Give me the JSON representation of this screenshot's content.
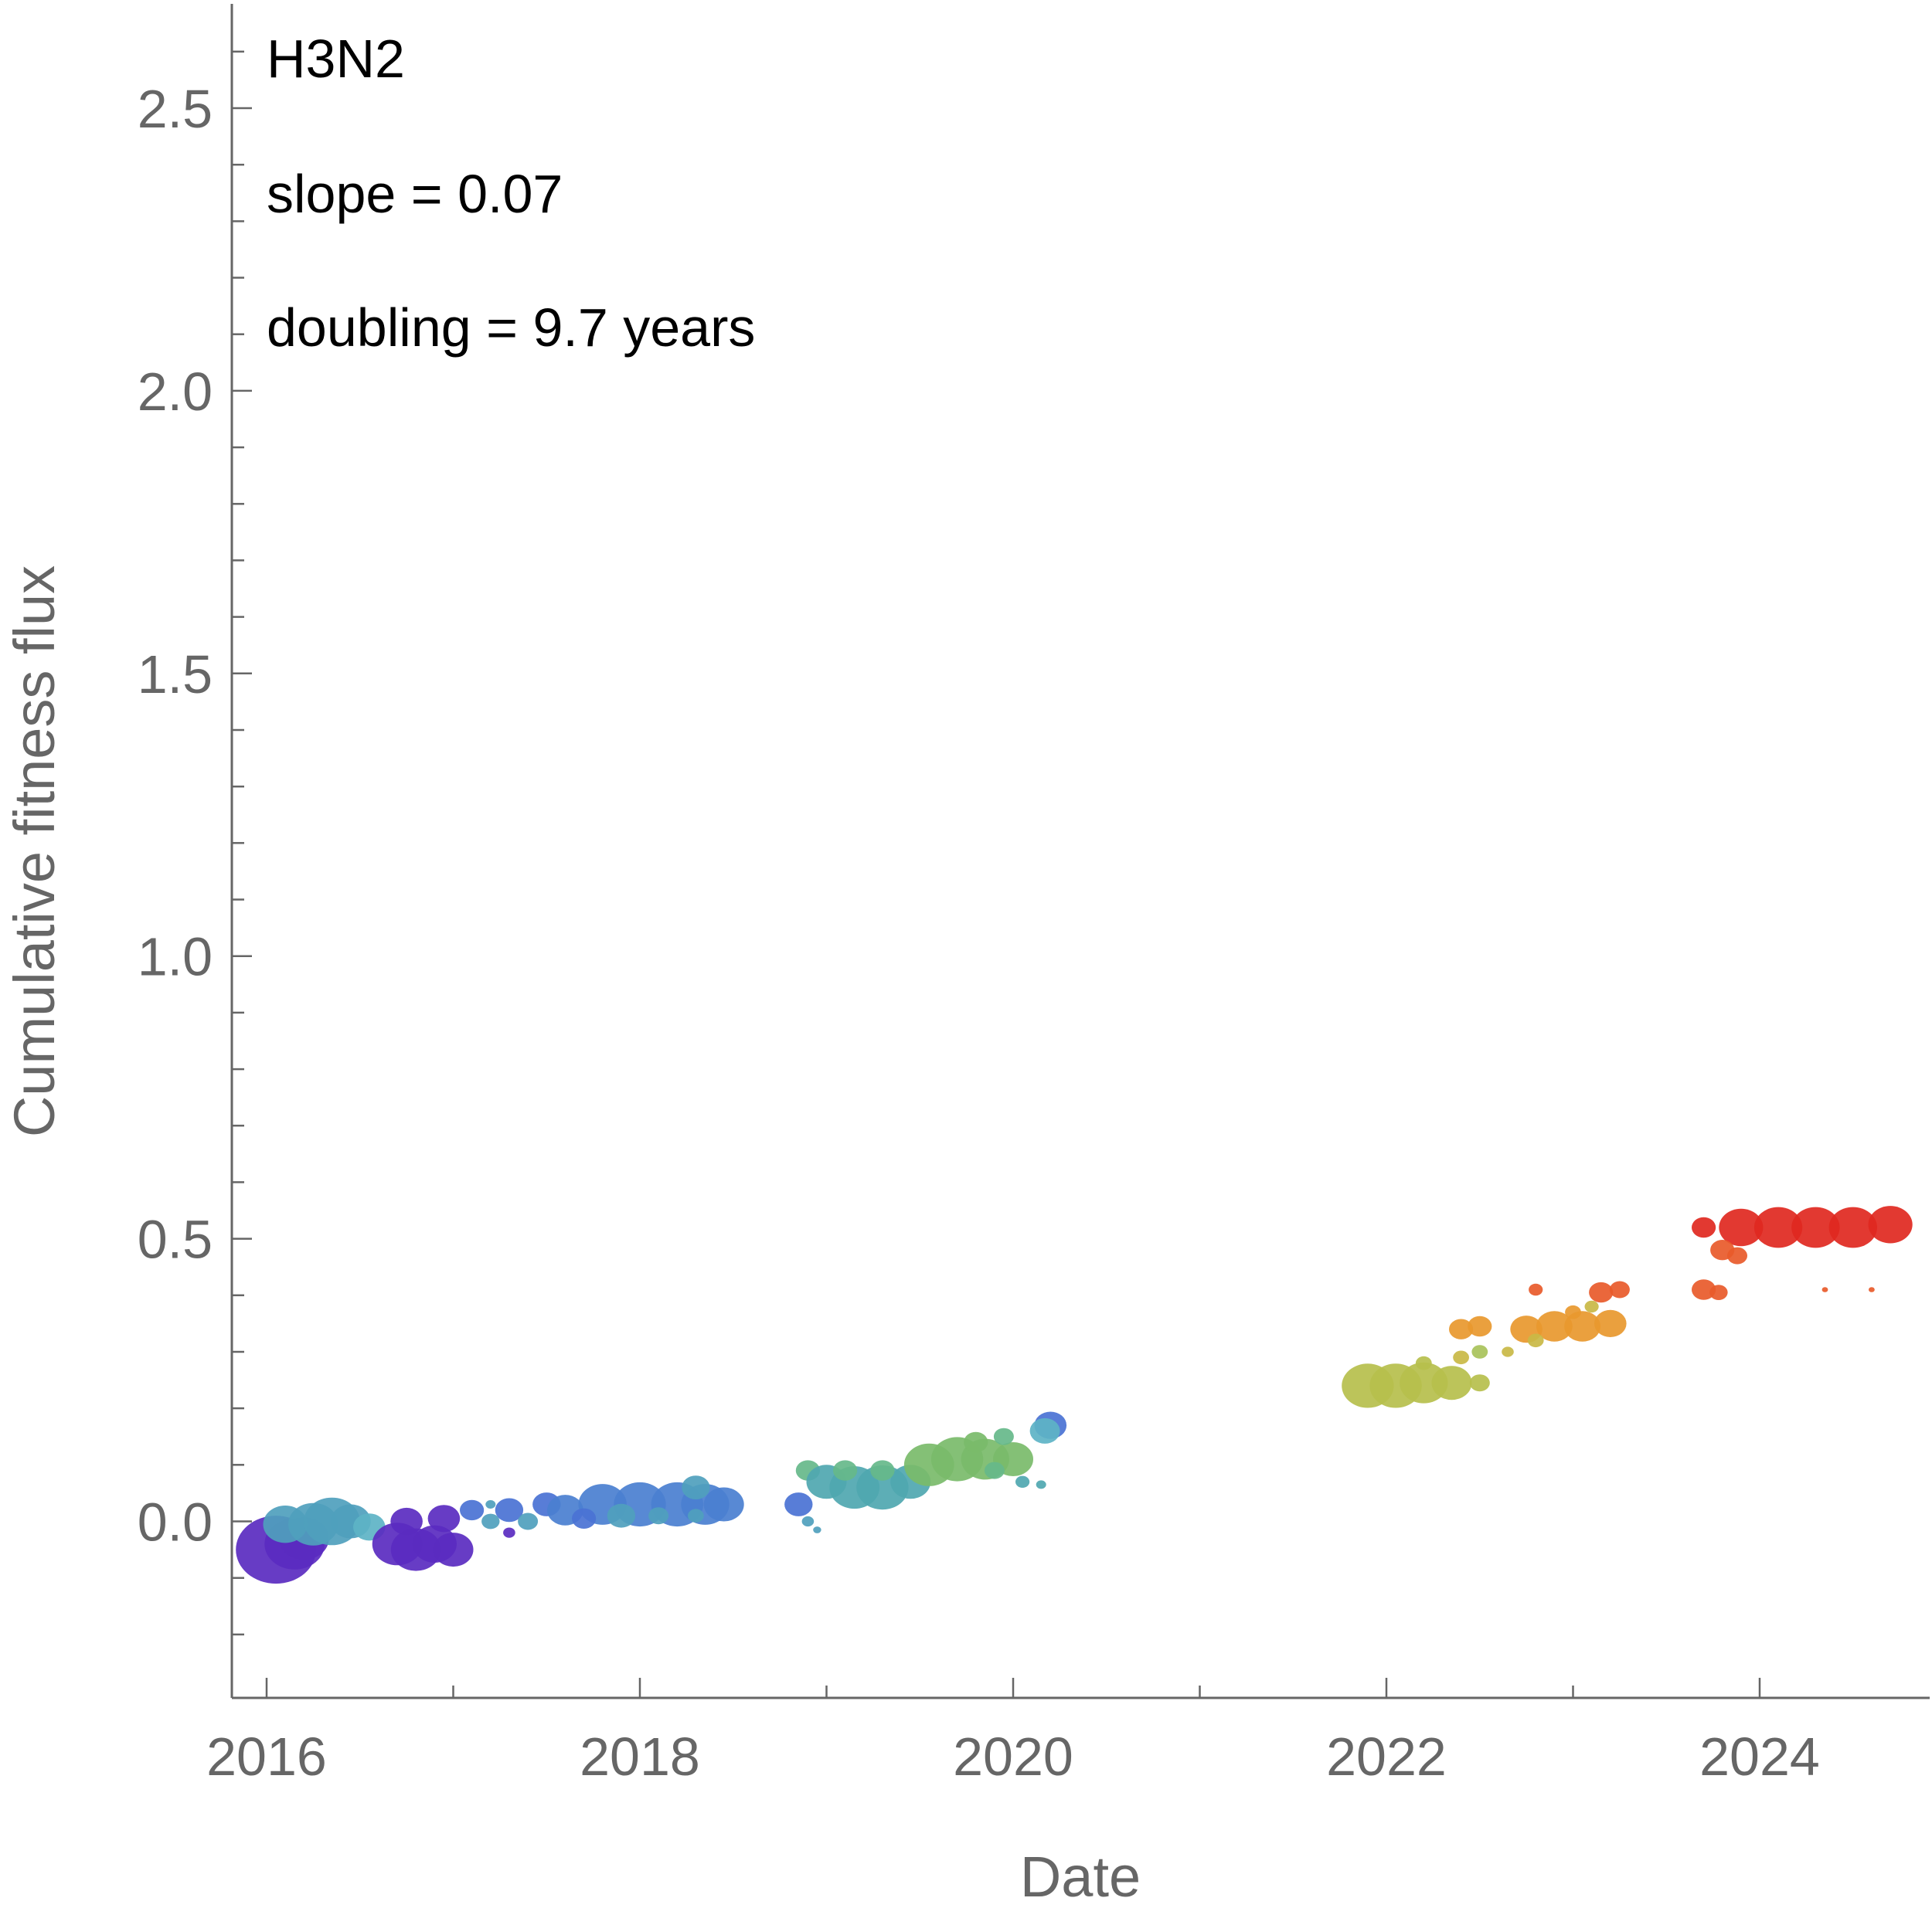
{
  "chart_data": {
    "type": "scatter",
    "title": "",
    "xlabel": "Date",
    "ylabel": "Cumulative fitness flux",
    "xlim": [
      2015.8,
      2024.9
    ],
    "ylim": [
      -0.3,
      2.7
    ],
    "x_ticks": [
      2016,
      2018,
      2020,
      2022,
      2024
    ],
    "x_tick_labels": [
      "2016",
      "2018",
      "2020",
      "2022",
      "2024"
    ],
    "y_ticks": [
      0.0,
      0.5,
      1.0,
      1.5,
      2.0,
      2.5
    ],
    "y_tick_labels": [
      "0.0",
      "0.5",
      "1.0",
      "1.5",
      "2.0",
      "2.5"
    ],
    "grid": false,
    "legend": "none",
    "annotations": [
      "H3N2",
      "slope = 0.07",
      "doubling = 9.7 years"
    ],
    "color_scale": "time (purple → blue → teal → green → yellow → orange → red)",
    "points": [
      {
        "x": 2016.05,
        "y": -0.05,
        "size": 4.0,
        "color": "#5a2bc0"
      },
      {
        "x": 2016.15,
        "y": -0.04,
        "size": 3.0,
        "color": "#5a2bc0"
      },
      {
        "x": 2016.2,
        "y": -0.03,
        "size": 2.5,
        "color": "#5a2bc0"
      },
      {
        "x": 2016.1,
        "y": -0.005,
        "size": 2.2,
        "color": "#4f9fbd"
      },
      {
        "x": 2016.25,
        "y": -0.005,
        "size": 2.5,
        "color": "#4f9fbd"
      },
      {
        "x": 2016.35,
        "y": 0.0,
        "size": 2.8,
        "color": "#4f9fbd"
      },
      {
        "x": 2016.45,
        "y": 0.0,
        "size": 2.0,
        "color": "#4f9fbd"
      },
      {
        "x": 2016.55,
        "y": -0.01,
        "size": 1.6,
        "color": "#5db3c6"
      },
      {
        "x": 2016.7,
        "y": -0.04,
        "size": 2.5,
        "color": "#5a2bc0"
      },
      {
        "x": 2016.8,
        "y": -0.05,
        "size": 2.5,
        "color": "#5a2bc0"
      },
      {
        "x": 2016.9,
        "y": -0.04,
        "size": 2.2,
        "color": "#5a2bc0"
      },
      {
        "x": 2017.0,
        "y": -0.05,
        "size": 2.0,
        "color": "#5a2bc0"
      },
      {
        "x": 2016.75,
        "y": 0.0,
        "size": 1.6,
        "color": "#5a2bc0"
      },
      {
        "x": 2016.95,
        "y": 0.005,
        "size": 1.6,
        "color": "#5a2bc0"
      },
      {
        "x": 2017.1,
        "y": 0.02,
        "size": 1.2,
        "color": "#4a72d4"
      },
      {
        "x": 2017.3,
        "y": 0.02,
        "size": 1.4,
        "color": "#4a72d4"
      },
      {
        "x": 2017.5,
        "y": 0.03,
        "size": 1.4,
        "color": "#4a72d4"
      },
      {
        "x": 2017.2,
        "y": 0.0,
        "size": 0.9,
        "color": "#4f9fbd"
      },
      {
        "x": 2017.4,
        "y": 0.0,
        "size": 1.0,
        "color": "#4f9fbd"
      },
      {
        "x": 2017.3,
        "y": -0.02,
        "size": 0.6,
        "color": "#5a2bc0"
      },
      {
        "x": 2017.6,
        "y": 0.02,
        "size": 1.8,
        "color": "#4a7fd0"
      },
      {
        "x": 2017.8,
        "y": 0.03,
        "size": 2.4,
        "color": "#4a7fd0"
      },
      {
        "x": 2018.0,
        "y": 0.03,
        "size": 2.6,
        "color": "#4a7fd0"
      },
      {
        "x": 2018.2,
        "y": 0.03,
        "size": 2.6,
        "color": "#4a7fd0"
      },
      {
        "x": 2018.35,
        "y": 0.03,
        "size": 2.4,
        "color": "#4a7fd0"
      },
      {
        "x": 2018.45,
        "y": 0.03,
        "size": 2.0,
        "color": "#4a7fd0"
      },
      {
        "x": 2017.7,
        "y": 0.005,
        "size": 1.2,
        "color": "#4a72d4"
      },
      {
        "x": 2017.9,
        "y": 0.01,
        "size": 1.4,
        "color": "#4f9fbd"
      },
      {
        "x": 2018.1,
        "y": 0.01,
        "size": 1.0,
        "color": "#4f9fbd"
      },
      {
        "x": 2018.3,
        "y": 0.01,
        "size": 0.8,
        "color": "#4f9fbd"
      },
      {
        "x": 2018.3,
        "y": 0.06,
        "size": 1.4,
        "color": "#4f9fbd"
      },
      {
        "x": 2017.2,
        "y": 0.03,
        "size": 0.5,
        "color": "#4f9fbd"
      },
      {
        "x": 2018.85,
        "y": 0.03,
        "size": 1.4,
        "color": "#4a72d4"
      },
      {
        "x": 2018.9,
        "y": 0.0,
        "size": 0.6,
        "color": "#4f9fbd"
      },
      {
        "x": 2018.95,
        "y": -0.015,
        "size": 0.4,
        "color": "#4f9fbd"
      },
      {
        "x": 2018.9,
        "y": 0.09,
        "size": 1.2,
        "color": "#66b88a"
      },
      {
        "x": 2019.0,
        "y": 0.07,
        "size": 2.0,
        "color": "#4fa7b0"
      },
      {
        "x": 2019.15,
        "y": 0.06,
        "size": 2.5,
        "color": "#4fa7b0"
      },
      {
        "x": 2019.3,
        "y": 0.06,
        "size": 2.6,
        "color": "#4fa7b0"
      },
      {
        "x": 2019.45,
        "y": 0.07,
        "size": 2.0,
        "color": "#4fa7b0"
      },
      {
        "x": 2019.1,
        "y": 0.09,
        "size": 1.2,
        "color": "#66b88a"
      },
      {
        "x": 2019.3,
        "y": 0.09,
        "size": 1.2,
        "color": "#66b88a"
      },
      {
        "x": 2019.55,
        "y": 0.1,
        "size": 2.5,
        "color": "#7abb6a"
      },
      {
        "x": 2019.7,
        "y": 0.11,
        "size": 2.6,
        "color": "#7abb6a"
      },
      {
        "x": 2019.85,
        "y": 0.11,
        "size": 2.4,
        "color": "#7abb6a"
      },
      {
        "x": 2020.0,
        "y": 0.11,
        "size": 2.0,
        "color": "#7abb6a"
      },
      {
        "x": 2019.8,
        "y": 0.14,
        "size": 1.2,
        "color": "#7abb6a"
      },
      {
        "x": 2019.95,
        "y": 0.15,
        "size": 1.0,
        "color": "#66b88a"
      },
      {
        "x": 2019.9,
        "y": 0.09,
        "size": 1.0,
        "color": "#66b88a"
      },
      {
        "x": 2020.05,
        "y": 0.07,
        "size": 0.7,
        "color": "#4fa7b0"
      },
      {
        "x": 2020.15,
        "y": 0.065,
        "size": 0.5,
        "color": "#4fa7b0"
      },
      {
        "x": 2020.2,
        "y": 0.17,
        "size": 1.6,
        "color": "#4a72d4"
      },
      {
        "x": 2020.17,
        "y": 0.16,
        "size": 1.5,
        "color": "#5db3c6"
      },
      {
        "x": 2021.9,
        "y": 0.24,
        "size": 2.6,
        "color": "#b6bf4c"
      },
      {
        "x": 2022.05,
        "y": 0.24,
        "size": 2.6,
        "color": "#b6bf4c"
      },
      {
        "x": 2022.2,
        "y": 0.245,
        "size": 2.4,
        "color": "#b6bf4c"
      },
      {
        "x": 2022.35,
        "y": 0.245,
        "size": 2.0,
        "color": "#b6bf4c"
      },
      {
        "x": 2022.5,
        "y": 0.245,
        "size": 1.0,
        "color": "#b6bf4c"
      },
      {
        "x": 2022.2,
        "y": 0.28,
        "size": 0.8,
        "color": "#b6bf4c"
      },
      {
        "x": 2022.4,
        "y": 0.29,
        "size": 0.8,
        "color": "#c9b845"
      },
      {
        "x": 2022.5,
        "y": 0.3,
        "size": 0.8,
        "color": "#a8c25a"
      },
      {
        "x": 2022.4,
        "y": 0.34,
        "size": 1.2,
        "color": "#e8982e"
      },
      {
        "x": 2022.5,
        "y": 0.345,
        "size": 1.2,
        "color": "#e8982e"
      },
      {
        "x": 2022.65,
        "y": 0.3,
        "size": 0.6,
        "color": "#c9b845"
      },
      {
        "x": 2022.75,
        "y": 0.34,
        "size": 1.6,
        "color": "#e8982e"
      },
      {
        "x": 2022.9,
        "y": 0.345,
        "size": 1.8,
        "color": "#e8982e"
      },
      {
        "x": 2023.05,
        "y": 0.345,
        "size": 1.8,
        "color": "#e8982e"
      },
      {
        "x": 2023.2,
        "y": 0.35,
        "size": 1.6,
        "color": "#e8982e"
      },
      {
        "x": 2022.8,
        "y": 0.32,
        "size": 0.8,
        "color": "#c9b845"
      },
      {
        "x": 2023.0,
        "y": 0.37,
        "size": 0.8,
        "color": "#e8982e"
      },
      {
        "x": 2023.1,
        "y": 0.38,
        "size": 0.7,
        "color": "#c9b845"
      },
      {
        "x": 2022.8,
        "y": 0.41,
        "size": 0.7,
        "color": "#e85a2a"
      },
      {
        "x": 2023.15,
        "y": 0.405,
        "size": 1.2,
        "color": "#e85a2a"
      },
      {
        "x": 2023.25,
        "y": 0.41,
        "size": 1.0,
        "color": "#e85a2a"
      },
      {
        "x": 2023.7,
        "y": 0.52,
        "size": 1.2,
        "color": "#e0281f"
      },
      {
        "x": 2023.9,
        "y": 0.52,
        "size": 2.2,
        "color": "#e0281f"
      },
      {
        "x": 2024.1,
        "y": 0.52,
        "size": 2.4,
        "color": "#e0281f"
      },
      {
        "x": 2024.3,
        "y": 0.52,
        "size": 2.4,
        "color": "#e0281f"
      },
      {
        "x": 2024.5,
        "y": 0.52,
        "size": 2.4,
        "color": "#e0281f"
      },
      {
        "x": 2024.7,
        "y": 0.525,
        "size": 2.2,
        "color": "#e0281f"
      },
      {
        "x": 2023.8,
        "y": 0.48,
        "size": 1.2,
        "color": "#e85a2a"
      },
      {
        "x": 2023.88,
        "y": 0.47,
        "size": 1.0,
        "color": "#e85a2a"
      },
      {
        "x": 2023.7,
        "y": 0.41,
        "size": 1.2,
        "color": "#e85a2a"
      },
      {
        "x": 2023.78,
        "y": 0.405,
        "size": 0.9,
        "color": "#e85a2a"
      },
      {
        "x": 2024.35,
        "y": 0.41,
        "size": 0.3,
        "color": "#e85a2a"
      },
      {
        "x": 2024.6,
        "y": 0.41,
        "size": 0.3,
        "color": "#e85a2a"
      }
    ]
  }
}
